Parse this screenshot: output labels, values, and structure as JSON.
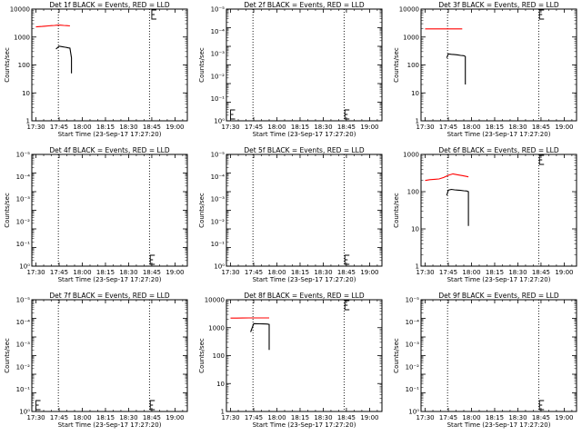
{
  "figure": {
    "background": "#ffffff",
    "colors": {
      "events": "#000000",
      "lld": "#ff0000",
      "axes": "#000000"
    },
    "shared_xlabel": "Start Time (23-Sep-17 17:27:20)",
    "shared_ylabel": "Counts/sec",
    "x_ticklabels": [
      "17:30",
      "17:45",
      "18:00",
      "18:15",
      "18:30",
      "18:45",
      "19:00"
    ],
    "x_tick_minutes": [
      30,
      45,
      60,
      75,
      90,
      105,
      120
    ],
    "x_range_minutes_after_17h": [
      27.33,
      128
    ],
    "vlines_minutes_after_17h": [
      44.5,
      103.5
    ],
    "vline_style": "dotted"
  },
  "chart_data": [
    {
      "type": "line",
      "title": "Det 1f BLACK = Events, RED = LLD",
      "xlabel": "Start Time (23-Sep-17 17:27:20)",
      "ylabel": "Counts/sec",
      "yscale": "log",
      "ylim": [
        1,
        10000
      ],
      "y_ticklabels": [
        "1",
        "10",
        "100",
        "1000",
        "10000"
      ],
      "y_tick_values": [
        1,
        10,
        100,
        1000,
        10000
      ],
      "series": [
        {
          "name": "LLD",
          "color": "#ff0000",
          "x": [
            "17:30",
            "17:32",
            "17:34",
            "17:36",
            "17:38",
            "17:40",
            "17:42",
            "17:44",
            "17:46",
            "17:48",
            "17:50",
            "17:52"
          ],
          "y": [
            2300,
            2350,
            2400,
            2450,
            2500,
            2550,
            2600,
            2650,
            2650,
            2600,
            2550,
            2500
          ]
        },
        {
          "name": "Events",
          "color": "#000000",
          "x": [
            "17:43",
            "17:45",
            "17:47",
            "17:49",
            "17:50",
            "17:51",
            "17:52",
            "17:53",
            "17:53"
          ],
          "y": [
            370,
            470,
            450,
            430,
            420,
            410,
            400,
            180,
            50
          ]
        }
      ],
      "markers": {
        "top": 105,
        "bottom": null
      }
    },
    {
      "type": "line",
      "title": "Det 2f BLACK = Events, RED = LLD",
      "xlabel": "Start Time (23-Sep-17 17:27:20)",
      "ylabel": "Counts/sec",
      "yscale": "log",
      "ylim": [
        1,
        1000000
      ],
      "y_ticklabels": [
        "10⁰",
        "10⁻¹",
        "10⁻²",
        "10⁻³",
        "10⁻⁴",
        "10⁻⁵"
      ],
      "series": [],
      "markers": {
        "top": null,
        "bottom": [
          30,
          104
        ]
      }
    },
    {
      "type": "line",
      "title": "Det 3f BLACK = Events, RED = LLD",
      "xlabel": "Start Time (23-Sep-17 17:27:20)",
      "ylabel": "Counts/sec",
      "yscale": "log",
      "ylim": [
        1,
        10000
      ],
      "y_ticklabels": [
        "1",
        "10",
        "100",
        "1000",
        "10000"
      ],
      "y_tick_values": [
        1,
        10,
        100,
        1000,
        10000
      ],
      "series": [
        {
          "name": "LLD",
          "color": "#ff0000",
          "x": [
            "17:30",
            "17:33",
            "17:36",
            "17:39",
            "17:42",
            "17:45",
            "17:48",
            "17:51",
            "17:54"
          ],
          "y": [
            1950,
            1950,
            1950,
            1960,
            1960,
            1960,
            1960,
            1960,
            1960
          ]
        },
        {
          "name": "Events",
          "color": "#000000",
          "x": [
            "17:44",
            "17:45",
            "17:47",
            "17:49",
            "17:51",
            "17:53",
            "17:55",
            "17:56",
            "17:56"
          ],
          "y": [
            180,
            250,
            240,
            235,
            230,
            220,
            215,
            200,
            20
          ]
        }
      ],
      "markers": {
        "top": 104,
        "bottom": null
      }
    },
    {
      "type": "line",
      "title": "Det 4f BLACK = Events, RED = LLD",
      "xlabel": "Start Time (23-Sep-17 17:27:20)",
      "ylabel": "Counts/sec",
      "yscale": "log",
      "ylim": [
        1,
        1000000
      ],
      "y_ticklabels": [
        "10⁰",
        "10⁻¹",
        "10⁻²",
        "10⁻³",
        "10⁻⁴",
        "10⁻⁵"
      ],
      "series": [],
      "markers": {
        "top": null,
        "bottom": [
          104
        ]
      }
    },
    {
      "type": "line",
      "title": "Det 5f BLACK = Events, RED = LLD",
      "xlabel": "Start Time (23-Sep-17 17:27:20)",
      "ylabel": "Counts/sec",
      "yscale": "log",
      "ylim": [
        1,
        1000000
      ],
      "y_ticklabels": [
        "10⁰",
        "10⁻¹",
        "10⁻²",
        "10⁻³",
        "10⁻⁴",
        "10⁻⁵"
      ],
      "series": [],
      "markers": {
        "top": null,
        "bottom": [
          104
        ]
      }
    },
    {
      "type": "line",
      "title": "Det 6f BLACK = Events, RED = LLD",
      "xlabel": "Start Time (23-Sep-17 17:27:20)",
      "ylabel": "Counts/sec",
      "yscale": "log",
      "ylim": [
        1,
        1000
      ],
      "y_ticklabels": [
        "1",
        "10",
        "100",
        "1000"
      ],
      "y_tick_values": [
        1,
        10,
        100,
        1000
      ],
      "series": [
        {
          "name": "LLD",
          "color": "#ff0000",
          "x": [
            "17:30",
            "17:33",
            "17:36",
            "17:39",
            "17:42",
            "17:45",
            "17:48",
            "17:51",
            "17:54",
            "17:57",
            "17:58"
          ],
          "y": [
            200,
            210,
            215,
            220,
            240,
            275,
            300,
            285,
            270,
            255,
            250
          ]
        },
        {
          "name": "Events",
          "color": "#000000",
          "x": [
            "17:44",
            "17:45",
            "17:47",
            "17:49",
            "17:51",
            "17:53",
            "17:55",
            "17:57",
            "17:58",
            "17:58"
          ],
          "y": [
            80,
            110,
            115,
            112,
            110,
            108,
            106,
            104,
            100,
            12
          ]
        }
      ],
      "markers": {
        "top": 104,
        "bottom": null
      }
    },
    {
      "type": "line",
      "title": "Det 7f BLACK = Events, RED = LLD",
      "xlabel": "Start Time (23-Sep-17 17:27:20)",
      "ylabel": "Counts/sec",
      "yscale": "log",
      "ylim": [
        1,
        1000000
      ],
      "y_ticklabels": [
        "10⁰",
        "10⁻¹",
        "10⁻²",
        "10⁻³",
        "10⁻⁴",
        "10⁻⁵"
      ],
      "series": [],
      "markers": {
        "top": null,
        "bottom": [
          30,
          104
        ]
      }
    },
    {
      "type": "line",
      "title": "Det 8f BLACK = Events, RED = LLD",
      "xlabel": "Start Time (23-Sep-17 17:27:20)",
      "ylabel": "Counts/sec",
      "yscale": "log",
      "ylim": [
        1,
        10000
      ],
      "y_ticklabels": [
        "1",
        "10",
        "100",
        "1000",
        "10000"
      ],
      "y_tick_values": [
        1,
        10,
        100,
        1000,
        10000
      ],
      "series": [
        {
          "name": "LLD",
          "color": "#ff0000",
          "x": [
            "17:30",
            "17:34",
            "17:38",
            "17:42",
            "17:46",
            "17:50",
            "17:54",
            "17:55"
          ],
          "y": [
            2200,
            2210,
            2220,
            2230,
            2240,
            2240,
            2240,
            2240
          ]
        },
        {
          "name": "Events",
          "color": "#000000",
          "x": [
            "17:43",
            "17:45",
            "17:47",
            "17:49",
            "17:51",
            "17:53",
            "17:54",
            "17:55",
            "17:55"
          ],
          "y": [
            700,
            1400,
            1380,
            1370,
            1360,
            1350,
            1340,
            1300,
            160
          ]
        }
      ],
      "markers": {
        "top": 104,
        "bottom": null
      }
    },
    {
      "type": "line",
      "title": "Det 9f BLACK = Events, RED = LLD",
      "xlabel": "Start Time (23-Sep-17 17:27:20)",
      "ylabel": "Counts/sec",
      "yscale": "log",
      "ylim": [
        1,
        1000000
      ],
      "y_ticklabels": [
        "10⁰",
        "10⁻¹",
        "10⁻²",
        "10⁻³",
        "10⁻⁴",
        "10⁻⁵"
      ],
      "series": [],
      "markers": {
        "top": null,
        "bottom": [
          104
        ]
      }
    }
  ]
}
